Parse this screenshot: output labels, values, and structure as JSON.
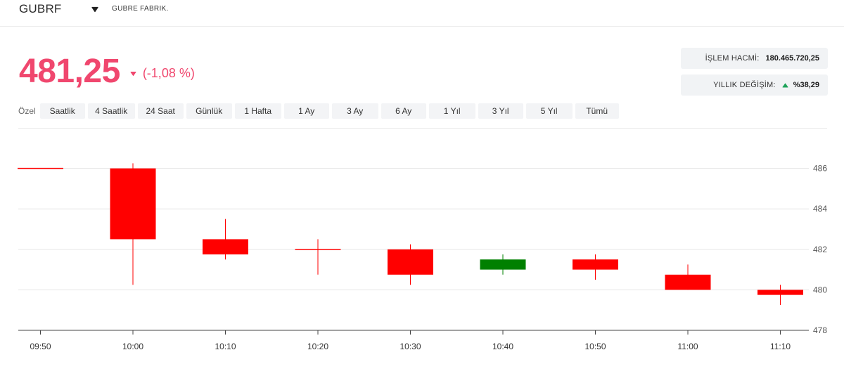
{
  "header": {
    "symbol": "GUBRF",
    "company": "GUBRE FABRIK."
  },
  "quote": {
    "price": "481,25",
    "change": "(-1,08 %)",
    "direction": "down",
    "color": "#f0476e"
  },
  "stats": {
    "volume_label": "İŞLEM HACMİ:",
    "volume_value": "180.465.720,25",
    "yearly_label": "YILLIK DEĞİŞİM:",
    "yearly_value": "%38,29",
    "yearly_direction": "up"
  },
  "ranges": {
    "prefix": "Özel",
    "items": [
      "Saatlik",
      "4 Saatlik",
      "24 Saat",
      "Günlük",
      "1 Hafta",
      "1 Ay",
      "3 Ay",
      "6 Ay",
      "1 Yıl",
      "3 Yıl",
      "5 Yıl",
      "Tümü"
    ]
  },
  "chart_data": {
    "type": "candlestick",
    "x_labels": [
      "09:50",
      "10:00",
      "10:10",
      "10:20",
      "10:30",
      "10:40",
      "10:50",
      "11:00",
      "11:10"
    ],
    "y_ticks": [
      478,
      480,
      482,
      484,
      486
    ],
    "ylim": [
      478,
      487.6
    ],
    "grid": true,
    "up_color": "#008000",
    "down_color": "#ff0000",
    "candles": [
      {
        "x": "09:50",
        "open": 486.0,
        "high": 486.0,
        "low": 486.0,
        "close": 486.0
      },
      {
        "x": "10:00",
        "open": 486.0,
        "high": 486.25,
        "low": 480.25,
        "close": 482.5
      },
      {
        "x": "10:10",
        "open": 482.5,
        "high": 483.5,
        "low": 481.5,
        "close": 481.75
      },
      {
        "x": "10:20",
        "open": 482.0,
        "high": 482.5,
        "low": 480.75,
        "close": 482.0
      },
      {
        "x": "10:30",
        "open": 482.0,
        "high": 482.25,
        "low": 480.25,
        "close": 480.75
      },
      {
        "x": "10:40",
        "open": 481.0,
        "high": 481.75,
        "low": 480.75,
        "close": 481.5
      },
      {
        "x": "10:50",
        "open": 481.5,
        "high": 481.75,
        "low": 480.5,
        "close": 481.0
      },
      {
        "x": "11:00",
        "open": 480.75,
        "high": 481.25,
        "low": 480.0,
        "close": 480.0
      },
      {
        "x": "11:10",
        "open": 480.0,
        "high": 480.25,
        "low": 479.25,
        "close": 479.75
      }
    ]
  }
}
